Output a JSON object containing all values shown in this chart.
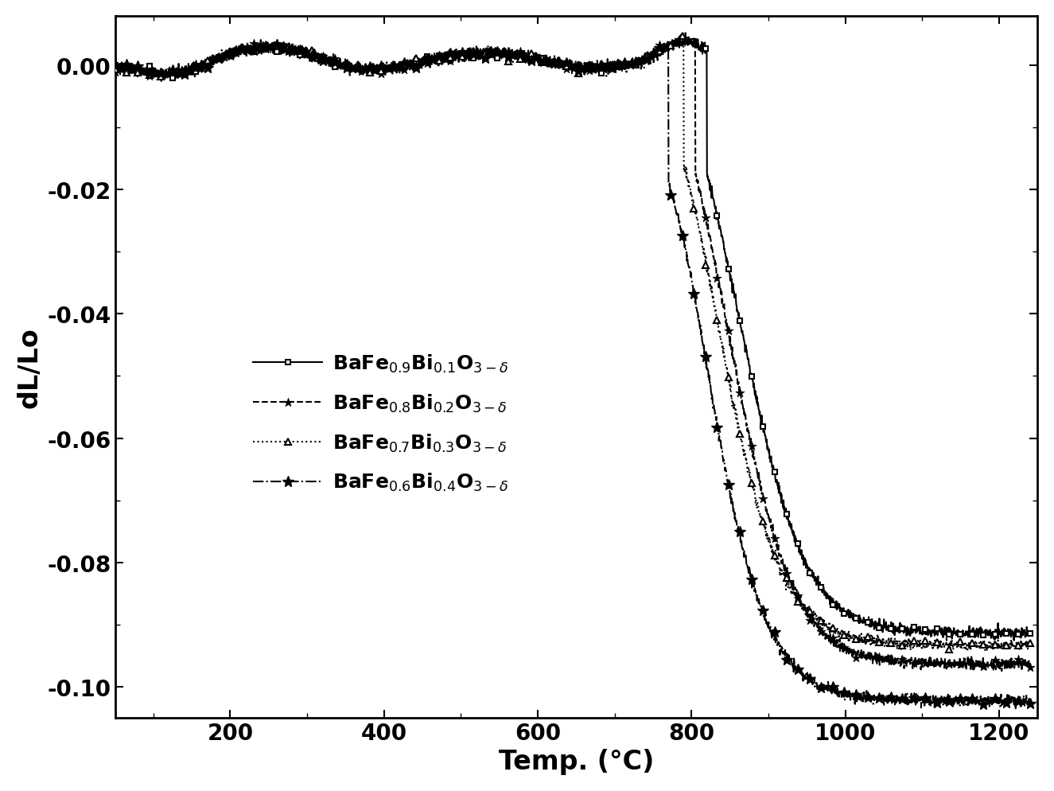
{
  "title": "",
  "xlabel": "Temp. (°C)",
  "ylabel": "dL/Lo",
  "xlim": [
    50,
    1250
  ],
  "ylim": [
    -0.105,
    0.008
  ],
  "xticks": [
    200,
    400,
    600,
    800,
    1000,
    1200
  ],
  "yticks": [
    0.0,
    -0.02,
    -0.04,
    -0.06,
    -0.08,
    -0.1
  ],
  "background_color": "white",
  "label_font_size": 24,
  "tick_font_size": 20,
  "legend_font_size": 18
}
